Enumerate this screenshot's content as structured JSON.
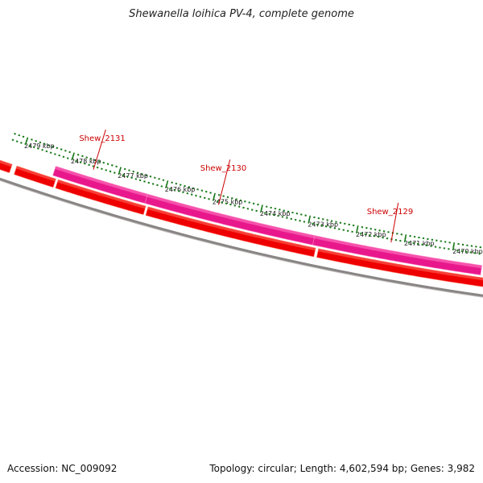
{
  "title": "Shewanella loihica PV-4, complete genome",
  "footer": {
    "accession": "Accession: NC_009092",
    "summary": "Topology: circular; Length: 4,602,594 bp; Genes: 3,982"
  },
  "ruler": {
    "labels": [
      "2479 kbp",
      "2478 kbp",
      "2477 kbp",
      "2476 kbp",
      "2475 kbp",
      "2474 kbp",
      "2473 kbp",
      "2472 kbp",
      "2471 kbp",
      "2470 kbp"
    ],
    "color": "#1a7a1a"
  },
  "genes": [
    {
      "label": "Shew_2131"
    },
    {
      "label": "Shew_2130"
    },
    {
      "label": "Shew_2129"
    }
  ],
  "colors": {
    "backbone": "#8a8585",
    "cds_forward": "#ee0000",
    "cds_reverse": "#e8188c",
    "label": "#cc0000"
  }
}
